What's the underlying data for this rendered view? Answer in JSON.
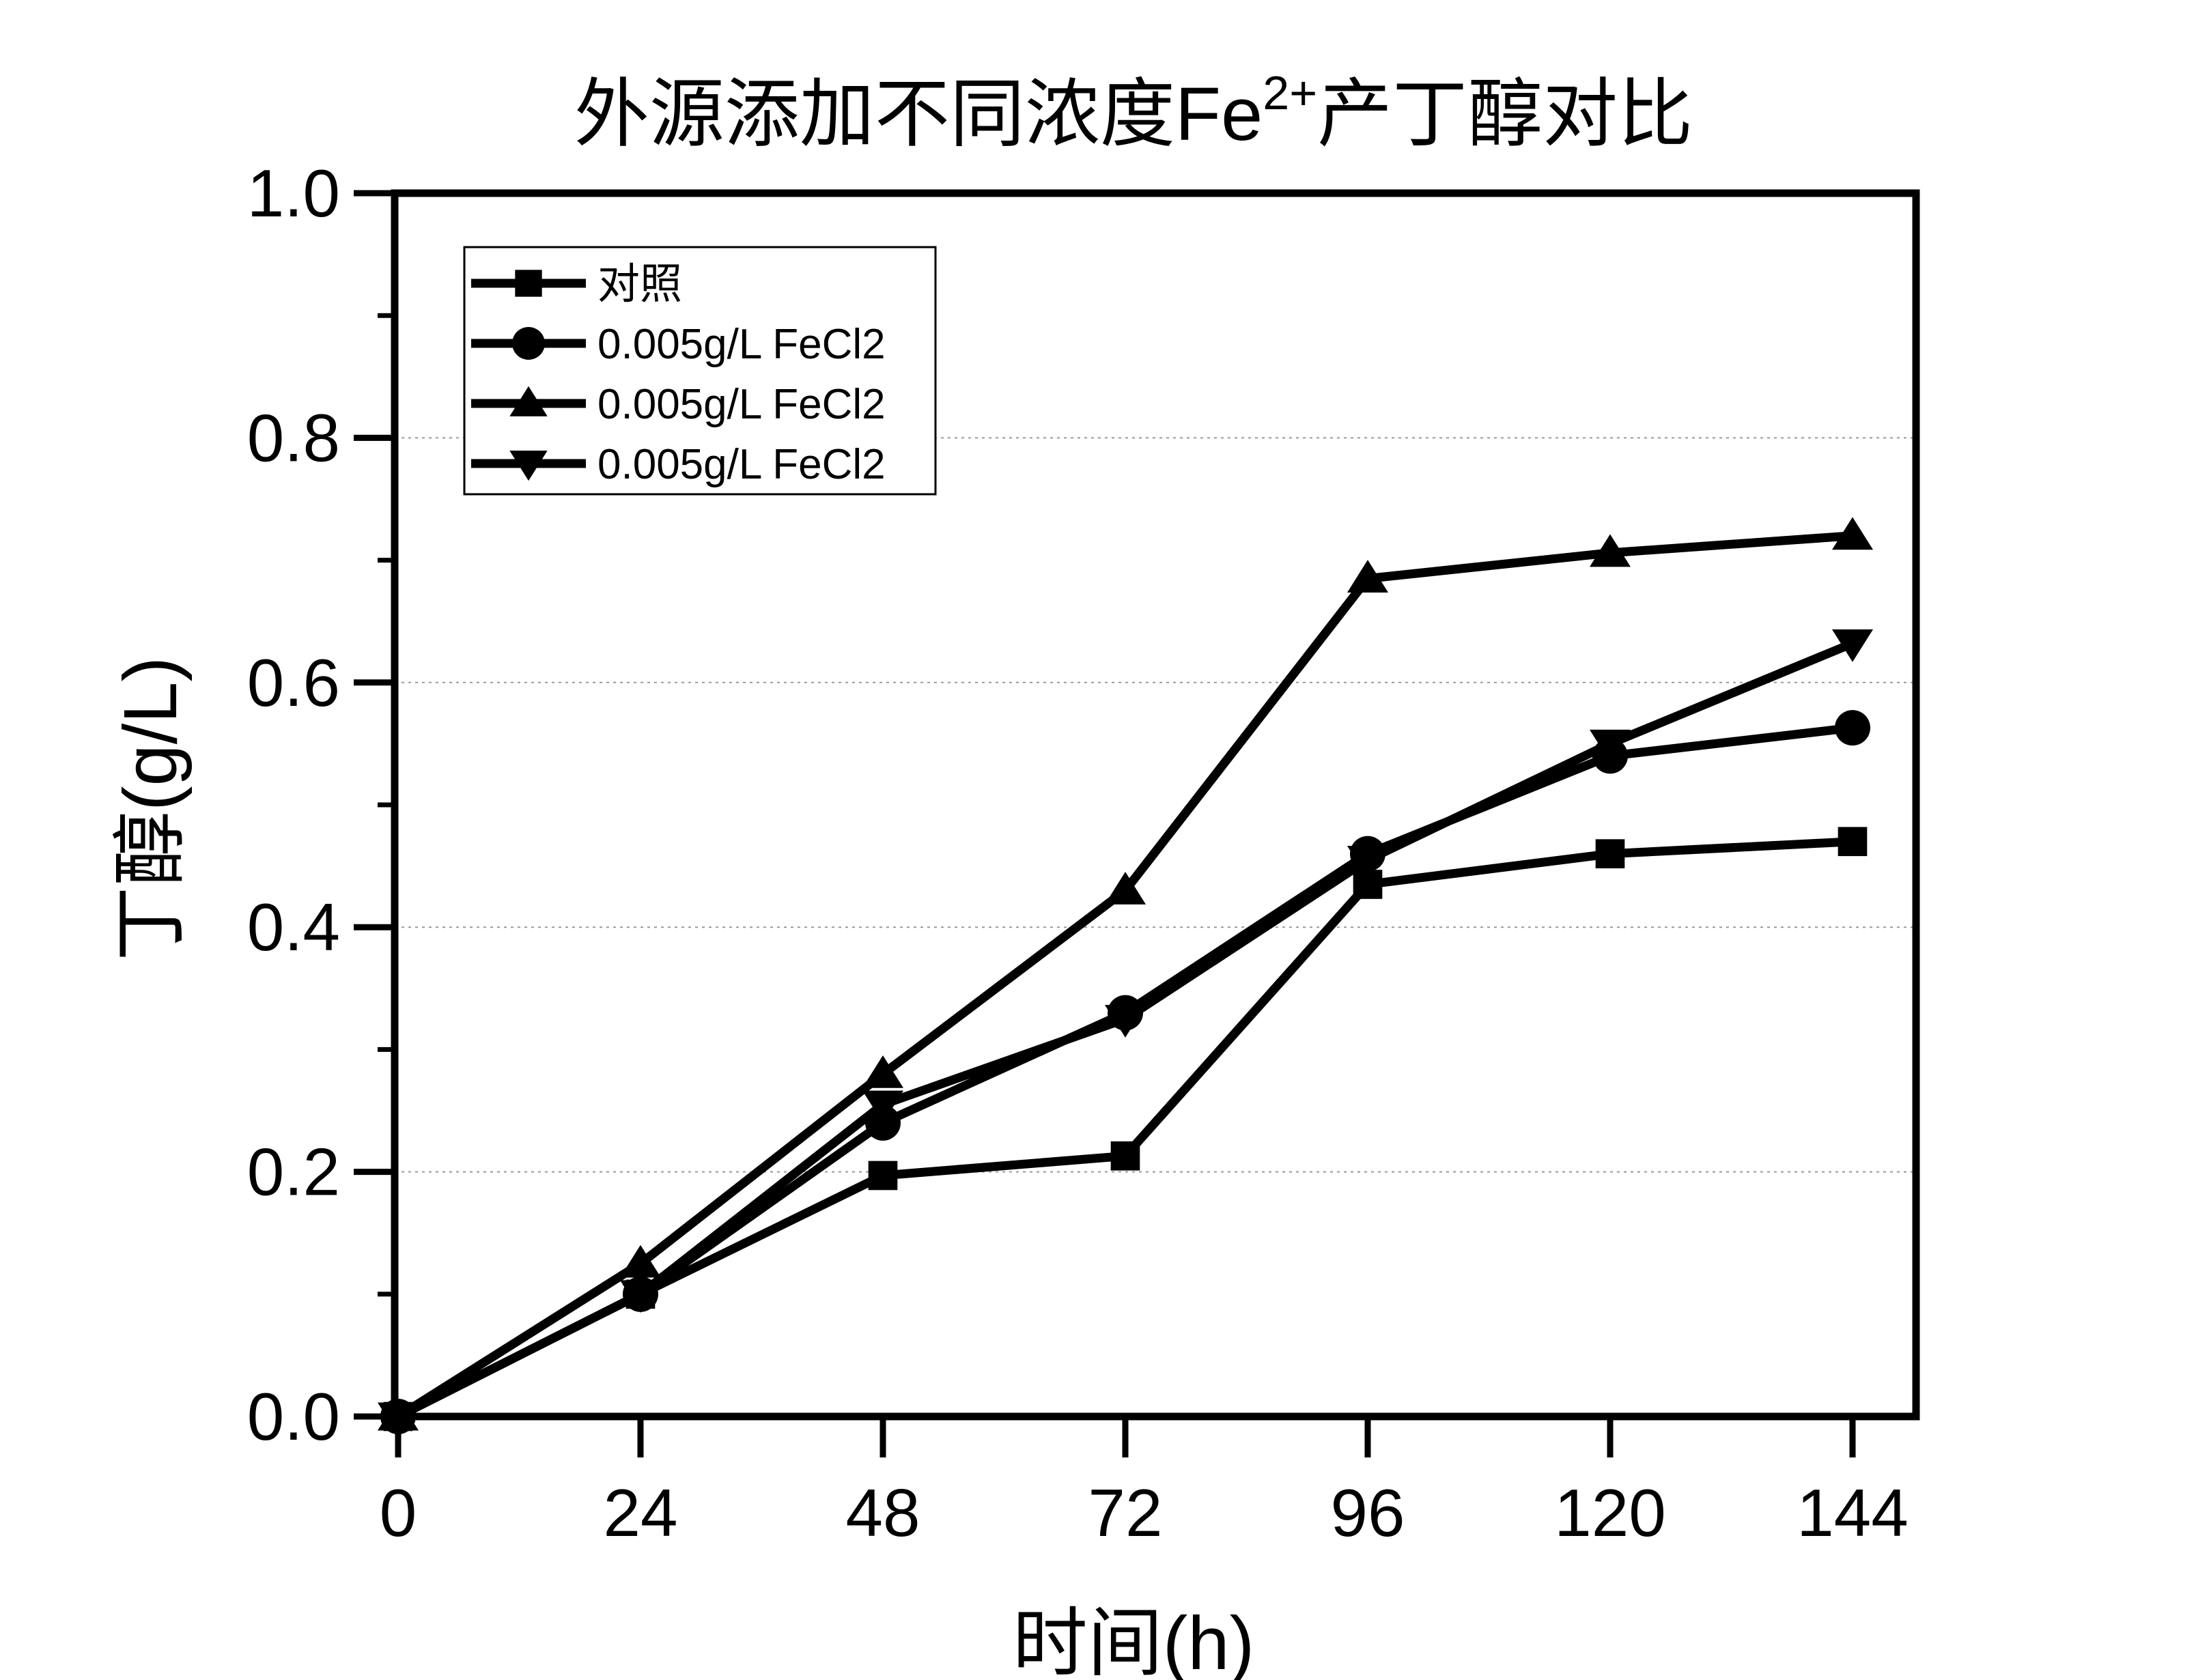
{
  "chart_data": {
    "type": "line",
    "title": "外源添加不同浓度Fe",
    "title_superscript": "2+",
    "title_suffix": "产丁醇对比",
    "xlabel": "时间(h)",
    "ylabel": "丁醇(g/L)",
    "x": [
      0,
      24,
      48,
      72,
      96,
      120,
      144
    ],
    "xticks": [
      "0",
      "24",
      "48",
      "72",
      "96",
      "120",
      "144"
    ],
    "yticks": [
      "0.0",
      "0.2",
      "0.4",
      "0.6",
      "0.8",
      "1.0"
    ],
    "xlim": [
      0,
      150
    ],
    "ylim": [
      0,
      1.0
    ],
    "grid": "horizontal dotted",
    "legend_position": "top-left",
    "line_color": "#000000",
    "series": [
      {
        "name": "对照",
        "marker": "square",
        "values": [
          0.0,
          0.1,
          0.197,
          0.213,
          0.435,
          0.46,
          0.47
        ]
      },
      {
        "name": "0.005g/L FeCl2",
        "marker": "circle",
        "values": [
          0.0,
          0.1,
          0.24,
          0.33,
          0.46,
          0.54,
          0.563
        ]
      },
      {
        "name": "0.005g/L FeCl2",
        "marker": "triangle-up",
        "values": [
          0.0,
          0.125,
          0.28,
          0.43,
          0.685,
          0.706,
          0.72
        ]
      },
      {
        "name": "0.005g/L FeCl2",
        "marker": "triangle-down",
        "values": [
          0.0,
          0.1,
          0.255,
          0.325,
          0.455,
          0.55,
          0.632
        ]
      }
    ]
  }
}
